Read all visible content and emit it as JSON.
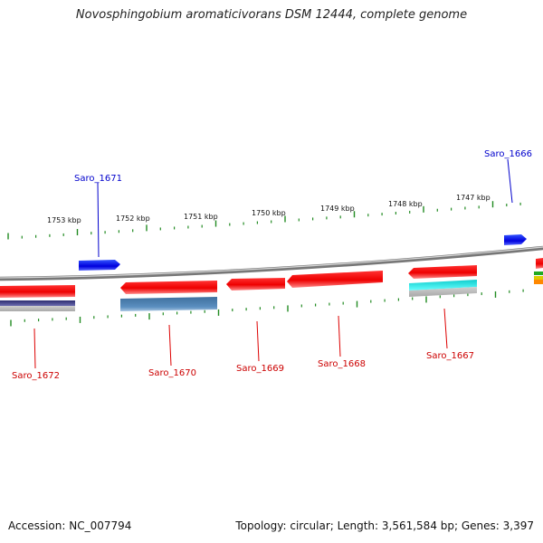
{
  "title": "Novosphingobium aromaticivorans DSM 12444, complete genome",
  "footer": {
    "accession": "Accession: NC_007794",
    "summary": "Topology: circular; Length: 3,561,584 bp; Genes: 3,397"
  },
  "colors": {
    "strand_forward": "#0000ee",
    "strand_reverse": "#dd0000",
    "backbone": "#8a8a8a",
    "ticks": "#228b22",
    "feature_steelblue": "#4a7fb0",
    "feature_cyan": "#22dddd",
    "feature_navy": "#33337a"
  },
  "ruler": {
    "labels": [
      "1753 kbp",
      "1752 kbp",
      "1751 kbp",
      "1750 kbp",
      "1749 kbp",
      "1748 kbp",
      "1747 kbp"
    ]
  },
  "genes": [
    {
      "name": "Saro_1672",
      "strand": "reverse"
    },
    {
      "name": "Saro_1671",
      "strand": "forward"
    },
    {
      "name": "Saro_1670",
      "strand": "reverse"
    },
    {
      "name": "Saro_1669",
      "strand": "reverse"
    },
    {
      "name": "Saro_1668",
      "strand": "reverse"
    },
    {
      "name": "Saro_1667",
      "strand": "reverse"
    },
    {
      "name": "Saro_1666",
      "strand": "forward"
    }
  ]
}
